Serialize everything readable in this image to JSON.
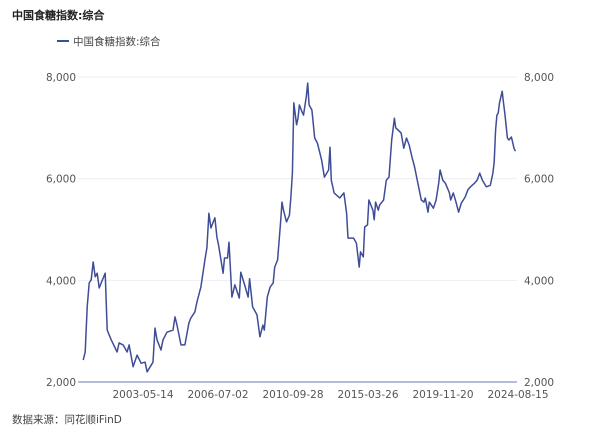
{
  "chart_data": {
    "type": "line",
    "title": "中国食糖指数:综合",
    "source": "数据来源：同花顺iFinD",
    "ylim": [
      2000,
      8000
    ],
    "yticks": [
      "2,000",
      "4,000",
      "6,000",
      "8,000"
    ],
    "ytick_values": [
      2000,
      4000,
      6000,
      8000
    ],
    "xticks": [
      "2003-05-14",
      "2006-07-02",
      "2010-09-28",
      "2015-03-26",
      "2019-11-20",
      "2024-08-15"
    ],
    "grid": true,
    "dual_y_axis_labels": true,
    "legend_placement": "top-left",
    "colors": {
      "line": "#3f4d96",
      "grid": "#eceef5",
      "axis": "#b4bcd6"
    },
    "series": [
      {
        "name": "中国食糖指数:综合",
        "x": [
          "2000-11",
          "2000-12",
          "2001-01",
          "2001-02",
          "2001-03",
          "2001-04",
          "2001-05",
          "2001-06",
          "2001-07",
          "2001-08",
          "2001-10",
          "2001-11",
          "2002-01",
          "2002-04",
          "2002-05",
          "2002-07",
          "2002-09",
          "2002-10",
          "2002-12",
          "2003-02",
          "2003-04",
          "2003-06",
          "2003-07",
          "2003-10",
          "2003-11",
          "2003-12",
          "2004-02",
          "2004-03",
          "2004-05",
          "2004-08",
          "2004-09",
          "2004-10",
          "2004-12",
          "2005-02",
          "2005-04",
          "2005-05",
          "2005-07",
          "2005-08",
          "2005-10",
          "2005-12",
          "2006-01",
          "2006-02",
          "2006-03",
          "2006-05",
          "2006-06",
          "2006-07",
          "2006-10",
          "2006-11",
          "2007-01",
          "2007-02",
          "2007-04",
          "2007-06",
          "2007-09",
          "2007-10",
          "2008-01",
          "2008-03",
          "2008-04",
          "2008-06",
          "2008-09",
          "2008-11",
          "2009-01",
          "2009-02",
          "2009-04",
          "2009-06",
          "2009-08",
          "2009-09",
          "2009-11",
          "2010-01",
          "2010-02",
          "2010-03",
          "2010-05",
          "2010-07",
          "2010-08",
          "2010-09",
          "2010-10",
          "2010-12",
          "2011-01",
          "2011-02",
          "2011-04",
          "2011-05",
          "2011-07",
          "2011-08",
          "2011-09",
          "2011-11",
          "2012-01",
          "2012-03",
          "2012-06",
          "2012-08",
          "2012-11",
          "2012-12",
          "2013-01",
          "2013-03",
          "2013-07",
          "2013-10",
          "2013-12",
          "2014-01",
          "2014-05",
          "2014-07",
          "2014-09",
          "2014-10",
          "2014-12",
          "2015-01",
          "2015-03",
          "2015-04",
          "2015-07",
          "2015-08",
          "2015-09",
          "2015-11",
          "2015-12",
          "2016-03",
          "2016-05",
          "2016-07",
          "2016-09",
          "2016-11",
          "2016-12",
          "2017-04",
          "2017-06",
          "2017-08",
          "2017-10",
          "2017-12",
          "2018-02",
          "2018-05",
          "2018-07",
          "2018-09",
          "2018-10",
          "2018-12",
          "2019-01",
          "2019-04",
          "2019-06",
          "2019-08",
          "2019-09",
          "2019-11",
          "2020-01",
          "2020-04",
          "2020-05",
          "2020-07",
          "2020-09",
          "2020-11",
          "2021-01",
          "2021-04",
          "2021-06",
          "2021-08",
          "2021-11",
          "2022-01",
          "2022-03",
          "2022-05",
          "2022-08",
          "2022-11",
          "2023-01",
          "2023-02",
          "2023-03",
          "2023-04",
          "2023-05",
          "2023-06",
          "2023-08",
          "2023-09",
          "2023-10",
          "2023-12",
          "2024-01",
          "2024-03",
          "2024-05",
          "2024-06"
        ],
        "values": [
          2430,
          2590,
          3480,
          3950,
          4010,
          4360,
          4070,
          4140,
          3850,
          3950,
          4140,
          3020,
          2830,
          2590,
          2770,
          2730,
          2590,
          2730,
          2300,
          2530,
          2370,
          2390,
          2200,
          2390,
          3060,
          2830,
          2630,
          2830,
          2980,
          3020,
          3280,
          3120,
          2730,
          2730,
          3160,
          3260,
          3380,
          3570,
          3870,
          4400,
          4640,
          5320,
          5030,
          5230,
          4850,
          4690,
          4140,
          4440,
          4440,
          4750,
          3670,
          3910,
          3650,
          4160,
          3870,
          3670,
          4030,
          3480,
          3320,
          2890,
          3120,
          3020,
          3670,
          3870,
          3950,
          4260,
          4400,
          5150,
          5540,
          5380,
          5150,
          5280,
          5640,
          6110,
          7490,
          7060,
          7190,
          7450,
          7310,
          7250,
          7610,
          7880,
          7450,
          7350,
          6800,
          6700,
          6370,
          6030,
          6170,
          6620,
          5970,
          5720,
          5620,
          5720,
          5320,
          4830,
          4830,
          4730,
          4260,
          4560,
          4460,
          5050,
          5090,
          5580,
          5380,
          5190,
          5540,
          5380,
          5480,
          5580,
          5970,
          6030,
          6760,
          7190,
          7000,
          6900,
          6600,
          6800,
          6660,
          6430,
          6230,
          5840,
          5580,
          5540,
          5620,
          5340,
          5540,
          5420,
          5580,
          5910,
          6170,
          5970,
          5910,
          5720,
          5580,
          5720,
          5540,
          5340,
          5520,
          5640,
          5780,
          5840,
          5910,
          5970,
          6110,
          5970,
          5840,
          5870,
          6110,
          6330,
          6960,
          7250,
          7290,
          7490,
          7720,
          7490,
          7290,
          6800,
          6760,
          6820,
          6600,
          6540
        ]
      }
    ]
  }
}
